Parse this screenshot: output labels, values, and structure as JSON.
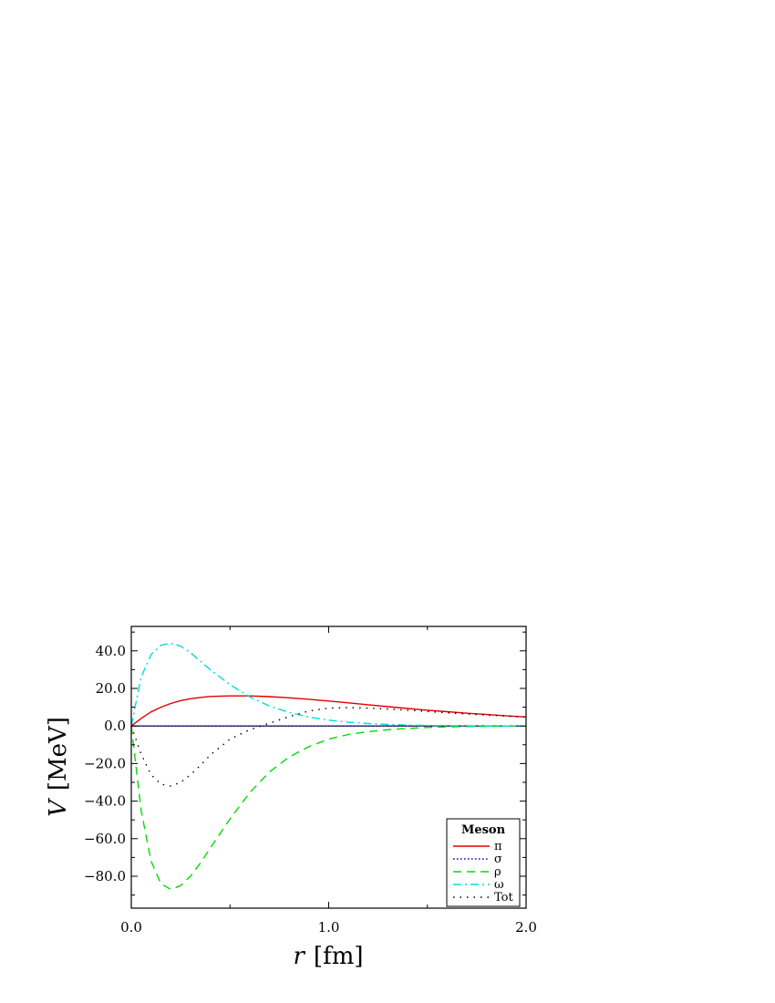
{
  "chart_data": {
    "type": "line",
    "xlabel_var": "r",
    "xlabel_unit": "[fm]",
    "ylabel_var": "V",
    "ylabel_unit": "[MeV]",
    "xlim": [
      0.0,
      2.0
    ],
    "ylim": [
      -97,
      53
    ],
    "x_ticks": [
      0.0,
      1.0,
      2.0
    ],
    "x_tick_labels": [
      "0.0",
      "1.0",
      "2.0"
    ],
    "y_ticks": [
      40,
      20,
      0,
      -20,
      -40,
      -60,
      -80
    ],
    "y_tick_labels": [
      "40.0",
      "20.0",
      "0.0",
      "−20.0",
      "−40.0",
      "−60.0",
      "−80.0"
    ],
    "grid": false,
    "legend_position": "bottom-right",
    "legend_title": "Meson",
    "x": [
      0.0,
      0.05,
      0.1,
      0.15,
      0.2,
      0.25,
      0.3,
      0.35,
      0.4,
      0.5,
      0.6,
      0.7,
      0.8,
      0.9,
      1.0,
      1.1,
      1.2,
      1.3,
      1.4,
      1.5,
      1.6,
      1.7,
      1.8,
      1.9,
      2.0
    ],
    "series": [
      {
        "name": "π",
        "color": "#e00000",
        "dash": "solid",
        "values": [
          0.0,
          4.0,
          7.5,
          10.0,
          12.0,
          13.5,
          14.5,
          15.2,
          15.7,
          16.0,
          16.0,
          15.6,
          15.0,
          14.2,
          13.3,
          12.3,
          11.3,
          10.3,
          9.3,
          8.4,
          7.6,
          6.8,
          6.1,
          5.4,
          4.8
        ]
      },
      {
        "name": "σ",
        "color": "#0000c0",
        "dash": "dotted",
        "values": [
          0,
          0,
          0,
          0,
          0,
          0,
          0,
          0,
          0,
          0,
          0,
          0,
          0,
          0,
          0,
          0,
          0,
          0,
          0,
          0,
          0,
          0,
          0,
          0,
          0
        ]
      },
      {
        "name": "ρ",
        "color": "#00dd00",
        "dash": "dashed",
        "values": [
          0.0,
          -45.0,
          -72.0,
          -84.0,
          -87.0,
          -85.0,
          -80.0,
          -73.0,
          -65.0,
          -49.5,
          -35.5,
          -24.5,
          -16.5,
          -11.0,
          -7.0,
          -4.5,
          -3.0,
          -2.0,
          -1.3,
          -0.8,
          -0.5,
          -0.3,
          -0.2,
          -0.1,
          0.0
        ]
      },
      {
        "name": "ω",
        "color": "#00dddd",
        "dash": "dashdot",
        "values": [
          0.0,
          26.0,
          38.0,
          43.0,
          44.0,
          42.5,
          39.0,
          34.5,
          30.0,
          22.0,
          15.5,
          10.6,
          7.2,
          4.7,
          3.1,
          2.0,
          1.3,
          0.8,
          0.5,
          0.3,
          0.2,
          0.1,
          0.05,
          0.0,
          0.0
        ]
      },
      {
        "name": "Tot",
        "color": "#000000",
        "dash": "sparsedot",
        "values": [
          0.0,
          -15.0,
          -26.0,
          -31.0,
          -32.0,
          -30.0,
          -26.0,
          -21.0,
          -15.5,
          -7.0,
          -2.0,
          1.5,
          5.0,
          8.0,
          9.5,
          9.8,
          9.5,
          9.0,
          8.4,
          7.7,
          7.0,
          6.4,
          5.8,
          5.3,
          4.8
        ]
      }
    ]
  }
}
